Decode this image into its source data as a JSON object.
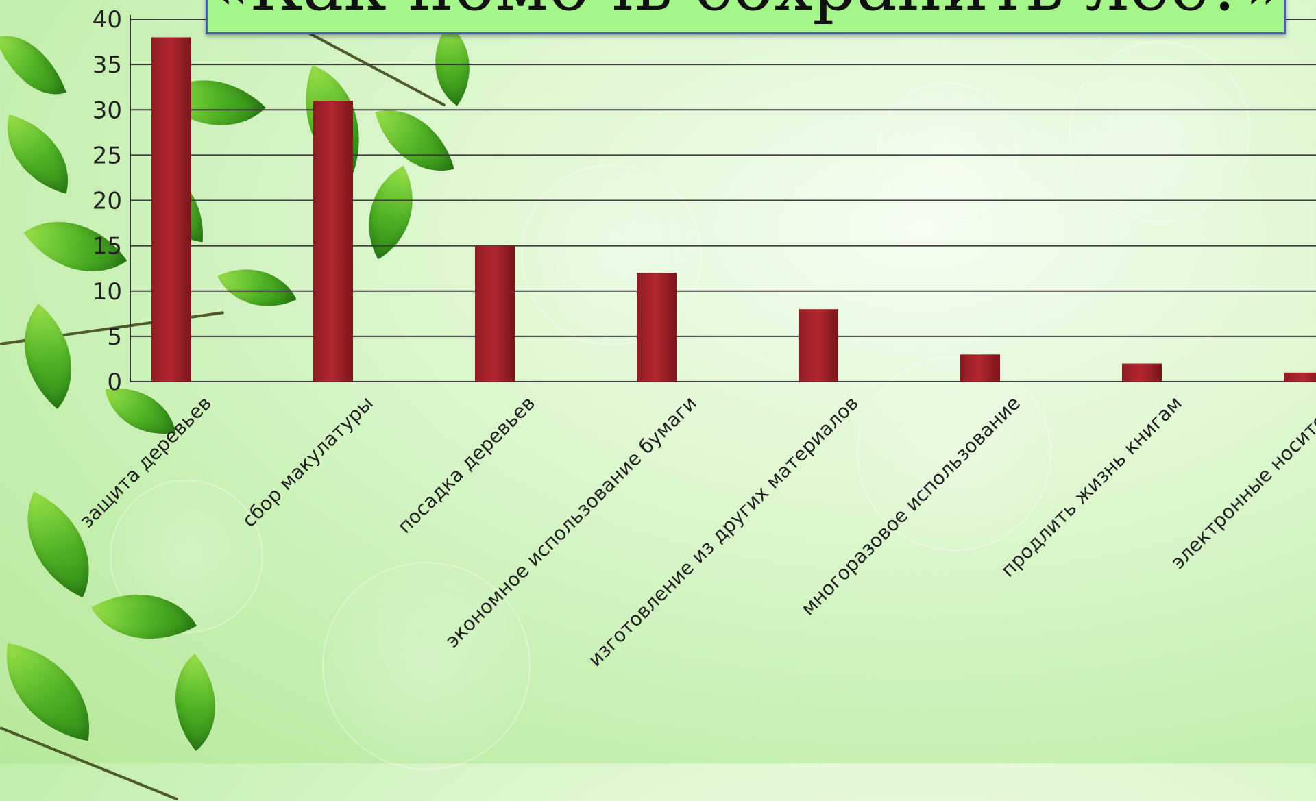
{
  "slide": {
    "title": "«Как помочь сохранить лес?»"
  },
  "chart_data": {
    "type": "bar",
    "categories": [
      "защита деревьев",
      "сбор макулатуры",
      "посадка деревьев",
      "экономное использование бумаги",
      "изготовление из других материалов",
      "многоразовое использование",
      "продлить жизнь книгам",
      "электронные носители"
    ],
    "values": [
      38,
      31,
      15,
      12,
      8,
      3,
      2,
      1
    ],
    "yticks": [
      "0",
      "5",
      "10",
      "15",
      "20",
      "25",
      "30",
      "35",
      "40"
    ],
    "ylim": [
      0,
      40
    ],
    "grid": true,
    "bar_color": "#b3272f"
  }
}
